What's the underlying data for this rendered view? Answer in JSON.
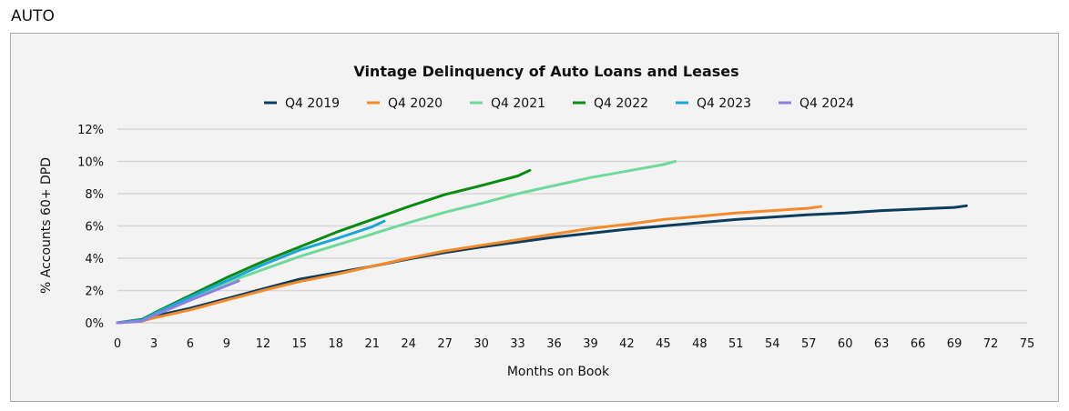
{
  "section_label": "AUTO",
  "chart_data": {
    "type": "line",
    "title": "Vintage Delinquency of Auto Loans and Leases",
    "xlabel": "Months on Book",
    "ylabel": "% Accounts 60+ DPD",
    "xlim": [
      0,
      75
    ],
    "ylim": [
      0,
      12
    ],
    "xticks": [
      0,
      3,
      6,
      9,
      12,
      15,
      18,
      21,
      24,
      27,
      30,
      33,
      36,
      39,
      42,
      45,
      48,
      51,
      54,
      57,
      60,
      63,
      66,
      69,
      72,
      75
    ],
    "yticks": [
      0,
      2,
      4,
      6,
      8,
      10,
      12
    ],
    "ytick_labels": [
      "0%",
      "2%",
      "4%",
      "6%",
      "8%",
      "10%",
      "12%"
    ],
    "grid": "horizontal",
    "legend_position": "top",
    "series": [
      {
        "name": "Q4 2019",
        "color": "#0d3d5e",
        "x": [
          0,
          2,
          3,
          6,
          9,
          12,
          15,
          18,
          21,
          24,
          27,
          30,
          33,
          36,
          39,
          42,
          45,
          48,
          51,
          54,
          57,
          60,
          63,
          66,
          69,
          70
        ],
        "y": [
          0,
          0.2,
          0.4,
          0.9,
          1.5,
          2.1,
          2.7,
          3.1,
          3.5,
          3.95,
          4.35,
          4.7,
          5.0,
          5.3,
          5.55,
          5.8,
          6.0,
          6.2,
          6.4,
          6.55,
          6.7,
          6.8,
          6.95,
          7.05,
          7.15,
          7.25
        ]
      },
      {
        "name": "Q4 2020",
        "color": "#f58a2b",
        "x": [
          0,
          2,
          3,
          6,
          9,
          12,
          15,
          18,
          21,
          24,
          27,
          30,
          33,
          36,
          39,
          42,
          45,
          48,
          51,
          54,
          57,
          58
        ],
        "y": [
          0,
          0.1,
          0.3,
          0.8,
          1.4,
          2.0,
          2.55,
          3.0,
          3.5,
          4.0,
          4.45,
          4.8,
          5.15,
          5.5,
          5.85,
          6.1,
          6.4,
          6.6,
          6.8,
          6.95,
          7.1,
          7.2
        ]
      },
      {
        "name": "Q4 2021",
        "color": "#6fd99a",
        "x": [
          0,
          2,
          3,
          6,
          9,
          12,
          15,
          18,
          21,
          24,
          27,
          30,
          33,
          36,
          39,
          42,
          45,
          46
        ],
        "y": [
          0,
          0.2,
          0.5,
          1.5,
          2.5,
          3.3,
          4.1,
          4.8,
          5.5,
          6.2,
          6.85,
          7.4,
          8.0,
          8.5,
          9.0,
          9.4,
          9.8,
          10.0
        ]
      },
      {
        "name": "Q4 2022",
        "color": "#0b8a12",
        "x": [
          0,
          2,
          3,
          6,
          9,
          12,
          15,
          18,
          21,
          24,
          27,
          30,
          33,
          34
        ],
        "y": [
          0,
          0.2,
          0.6,
          1.7,
          2.8,
          3.8,
          4.7,
          5.6,
          6.4,
          7.2,
          7.95,
          8.5,
          9.1,
          9.45
        ]
      },
      {
        "name": "Q4 2023",
        "color": "#1ba6d9",
        "x": [
          0,
          2,
          3,
          6,
          9,
          12,
          15,
          18,
          21,
          22
        ],
        "y": [
          0,
          0.15,
          0.55,
          1.6,
          2.6,
          3.6,
          4.5,
          5.2,
          5.95,
          6.3
        ]
      },
      {
        "name": "Q4 2024",
        "color": "#8b80e0",
        "x": [
          0,
          2,
          3,
          6,
          9,
          10
        ],
        "y": [
          0,
          0.1,
          0.45,
          1.4,
          2.3,
          2.6
        ]
      }
    ]
  }
}
